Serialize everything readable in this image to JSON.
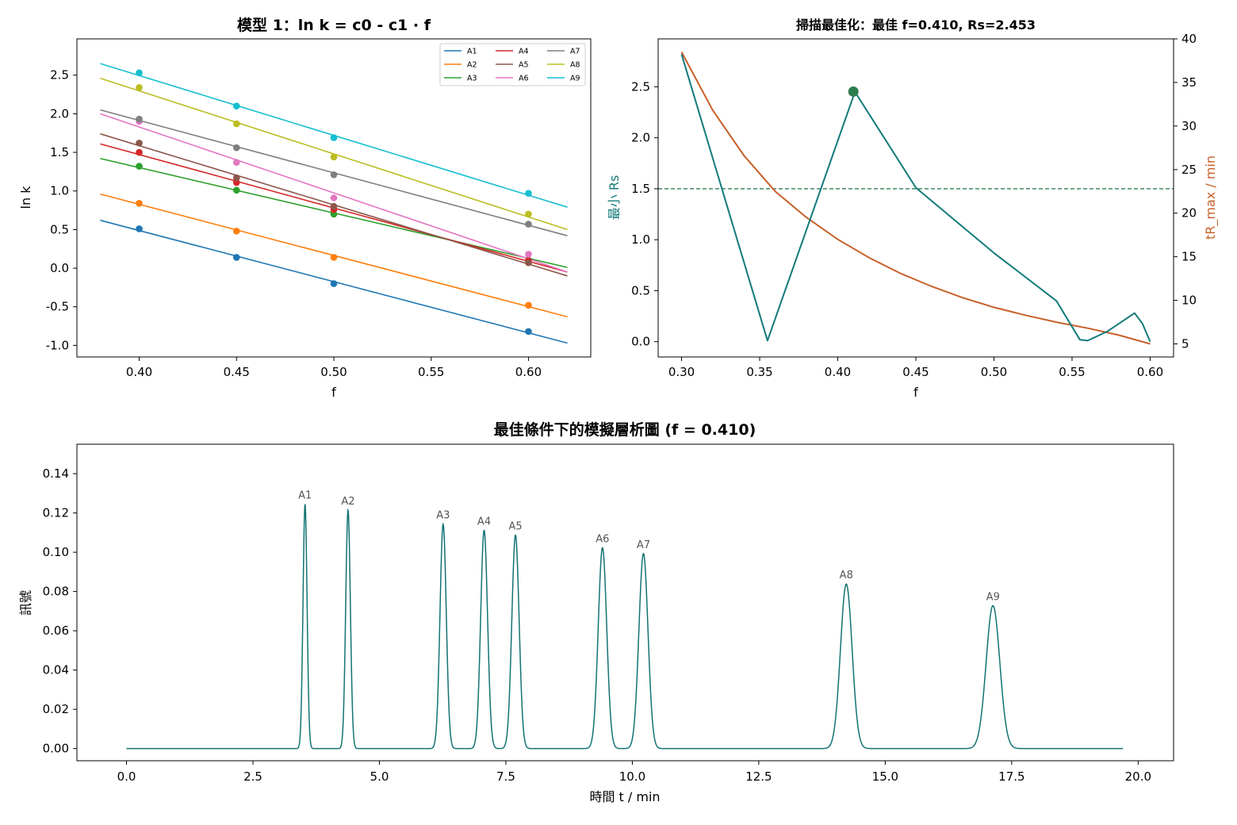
{
  "chart_data": [
    {
      "type": "scatter",
      "title": "模型 1：ln k = c0 - c1 · f",
      "xlabel": "f",
      "ylabel": "ln k",
      "xlim": [
        0.368,
        0.632
      ],
      "ylim": [
        -1.15,
        2.97
      ],
      "xticks": [
        0.4,
        0.45,
        0.5,
        0.55,
        0.6
      ],
      "yticks": [
        -1.0,
        -0.5,
        0.0,
        0.5,
        1.0,
        1.5,
        2.0,
        2.5
      ],
      "legend": "top-right",
      "fit_range": [
        0.38,
        0.62
      ],
      "series": [
        {
          "name": "A1",
          "color": "#1f77b4",
          "fit": [
            0.62,
            -0.97
          ],
          "points": [
            [
              0.4,
              0.51
            ],
            [
              0.45,
              0.14
            ],
            [
              0.5,
              -0.2
            ],
            [
              0.6,
              -0.82
            ]
          ]
        },
        {
          "name": "A2",
          "color": "#ff7f0e",
          "fit": [
            0.96,
            -0.63
          ],
          "points": [
            [
              0.4,
              0.84
            ],
            [
              0.45,
              0.48
            ],
            [
              0.5,
              0.14
            ],
            [
              0.6,
              -0.48
            ]
          ]
        },
        {
          "name": "A3",
          "color": "#2ca02c",
          "fit": [
            1.42,
            0.01
          ],
          "points": [
            [
              0.4,
              1.32
            ],
            [
              0.45,
              1.01
            ],
            [
              0.5,
              0.7
            ],
            [
              0.6,
              0.1
            ]
          ]
        },
        {
          "name": "A4",
          "color": "#d62728",
          "fit": [
            1.61,
            -0.05
          ],
          "points": [
            [
              0.4,
              1.5
            ],
            [
              0.45,
              1.11
            ],
            [
              0.5,
              0.76
            ],
            [
              0.6,
              0.1
            ]
          ]
        },
        {
          "name": "A5",
          "color": "#8c564b",
          "fit": [
            1.74,
            -0.1
          ],
          "points": [
            [
              0.4,
              1.62
            ],
            [
              0.45,
              1.17
            ],
            [
              0.5,
              0.8
            ],
            [
              0.6,
              0.07
            ]
          ]
        },
        {
          "name": "A6",
          "color": "#e377c2",
          "fit": [
            2.0,
            -0.05
          ],
          "points": [
            [
              0.4,
              1.9
            ],
            [
              0.45,
              1.37
            ],
            [
              0.5,
              0.91
            ],
            [
              0.6,
              0.18
            ]
          ]
        },
        {
          "name": "A7",
          "color": "#7f7f7f",
          "fit": [
            2.05,
            0.42
          ],
          "points": [
            [
              0.4,
              1.93
            ],
            [
              0.45,
              1.56
            ],
            [
              0.5,
              1.21
            ],
            [
              0.6,
              0.57
            ]
          ]
        },
        {
          "name": "A8",
          "color": "#bcbd22",
          "fit": [
            2.46,
            0.5
          ],
          "points": [
            [
              0.4,
              2.34
            ],
            [
              0.45,
              1.87
            ],
            [
              0.5,
              1.44
            ],
            [
              0.6,
              0.7
            ]
          ]
        },
        {
          "name": "A9",
          "color": "#17becf",
          "fit": [
            2.65,
            0.79
          ],
          "points": [
            [
              0.4,
              2.53
            ],
            [
              0.45,
              2.1
            ],
            [
              0.5,
              1.69
            ],
            [
              0.6,
              0.97
            ]
          ]
        }
      ]
    },
    {
      "type": "line",
      "title": "掃描最佳化：最佳 f=0.410, Rs=2.453",
      "xlabel": "f",
      "ylabel": "最小 Rs",
      "y2label": "tR_max / min",
      "xlim": [
        0.285,
        0.615
      ],
      "ylim": [
        -0.15,
        2.97
      ],
      "y2lim": [
        3.5,
        40.0
      ],
      "xticks": [
        0.3,
        0.35,
        0.4,
        0.45,
        0.5,
        0.55,
        0.6
      ],
      "yticks": [
        0.0,
        0.5,
        1.0,
        1.5,
        2.0,
        2.5
      ],
      "y2ticks": [
        5,
        10,
        15,
        20,
        25,
        30,
        35,
        40
      ],
      "threshold": 1.5,
      "optimum": {
        "f": 0.41,
        "rs": 2.453
      },
      "rs_color": "#137a7a",
      "tr_color": "#c8602a",
      "threshold_color": "#2e7d4f",
      "rs_series": [
        [
          0.3,
          2.82
        ],
        [
          0.355,
          0.01
        ],
        [
          0.411,
          2.45
        ],
        [
          0.45,
          1.51
        ],
        [
          0.5,
          0.87
        ],
        [
          0.54,
          0.4
        ],
        [
          0.555,
          0.02
        ],
        [
          0.56,
          0.01
        ],
        [
          0.5725,
          0.1
        ],
        [
          0.59,
          0.28
        ],
        [
          0.595,
          0.18
        ],
        [
          0.6,
          0.0
        ]
      ],
      "tr_series": [
        [
          0.3,
          38.5
        ],
        [
          0.32,
          31.8
        ],
        [
          0.34,
          26.6
        ],
        [
          0.36,
          22.5
        ],
        [
          0.38,
          19.5
        ],
        [
          0.4,
          17.0
        ],
        [
          0.42,
          14.9
        ],
        [
          0.44,
          13.1
        ],
        [
          0.46,
          11.6
        ],
        [
          0.48,
          10.3
        ],
        [
          0.5,
          9.2
        ],
        [
          0.52,
          8.3
        ],
        [
          0.54,
          7.5
        ],
        [
          0.56,
          6.8
        ],
        [
          0.58,
          6.0
        ],
        [
          0.6,
          5.0
        ]
      ]
    },
    {
      "type": "line",
      "title": "最佳條件下的模擬層析圖 (f = 0.410)",
      "xlabel": "時間 t / min",
      "ylabel": "訊號",
      "xlim": [
        -0.98,
        20.7
      ],
      "ylim": [
        -0.0062,
        0.155
      ],
      "xticks": [
        0.0,
        2.5,
        5.0,
        7.5,
        10.0,
        12.5,
        15.0,
        17.5,
        20.0
      ],
      "yticks": [
        0.0,
        0.02,
        0.04,
        0.06,
        0.08,
        0.1,
        0.12,
        0.14
      ],
      "t_range": [
        0.0,
        19.7
      ],
      "color": "#137373",
      "peaks": [
        {
          "label": "A1",
          "t": 3.53,
          "height": 0.1245,
          "width": 0.04
        },
        {
          "label": "A2",
          "t": 4.38,
          "height": 0.1215,
          "width": 0.046
        },
        {
          "label": "A3",
          "t": 6.26,
          "height": 0.1143,
          "width": 0.062
        },
        {
          "label": "A4",
          "t": 7.07,
          "height": 0.1112,
          "width": 0.068
        },
        {
          "label": "A5",
          "t": 7.69,
          "height": 0.1087,
          "width": 0.072
        },
        {
          "label": "A6",
          "t": 9.41,
          "height": 0.1023,
          "width": 0.084
        },
        {
          "label": "A7",
          "t": 10.22,
          "height": 0.0993,
          "width": 0.09
        },
        {
          "label": "A8",
          "t": 14.23,
          "height": 0.0838,
          "width": 0.115
        },
        {
          "label": "A9",
          "t": 17.13,
          "height": 0.0728,
          "width": 0.135
        }
      ]
    }
  ]
}
